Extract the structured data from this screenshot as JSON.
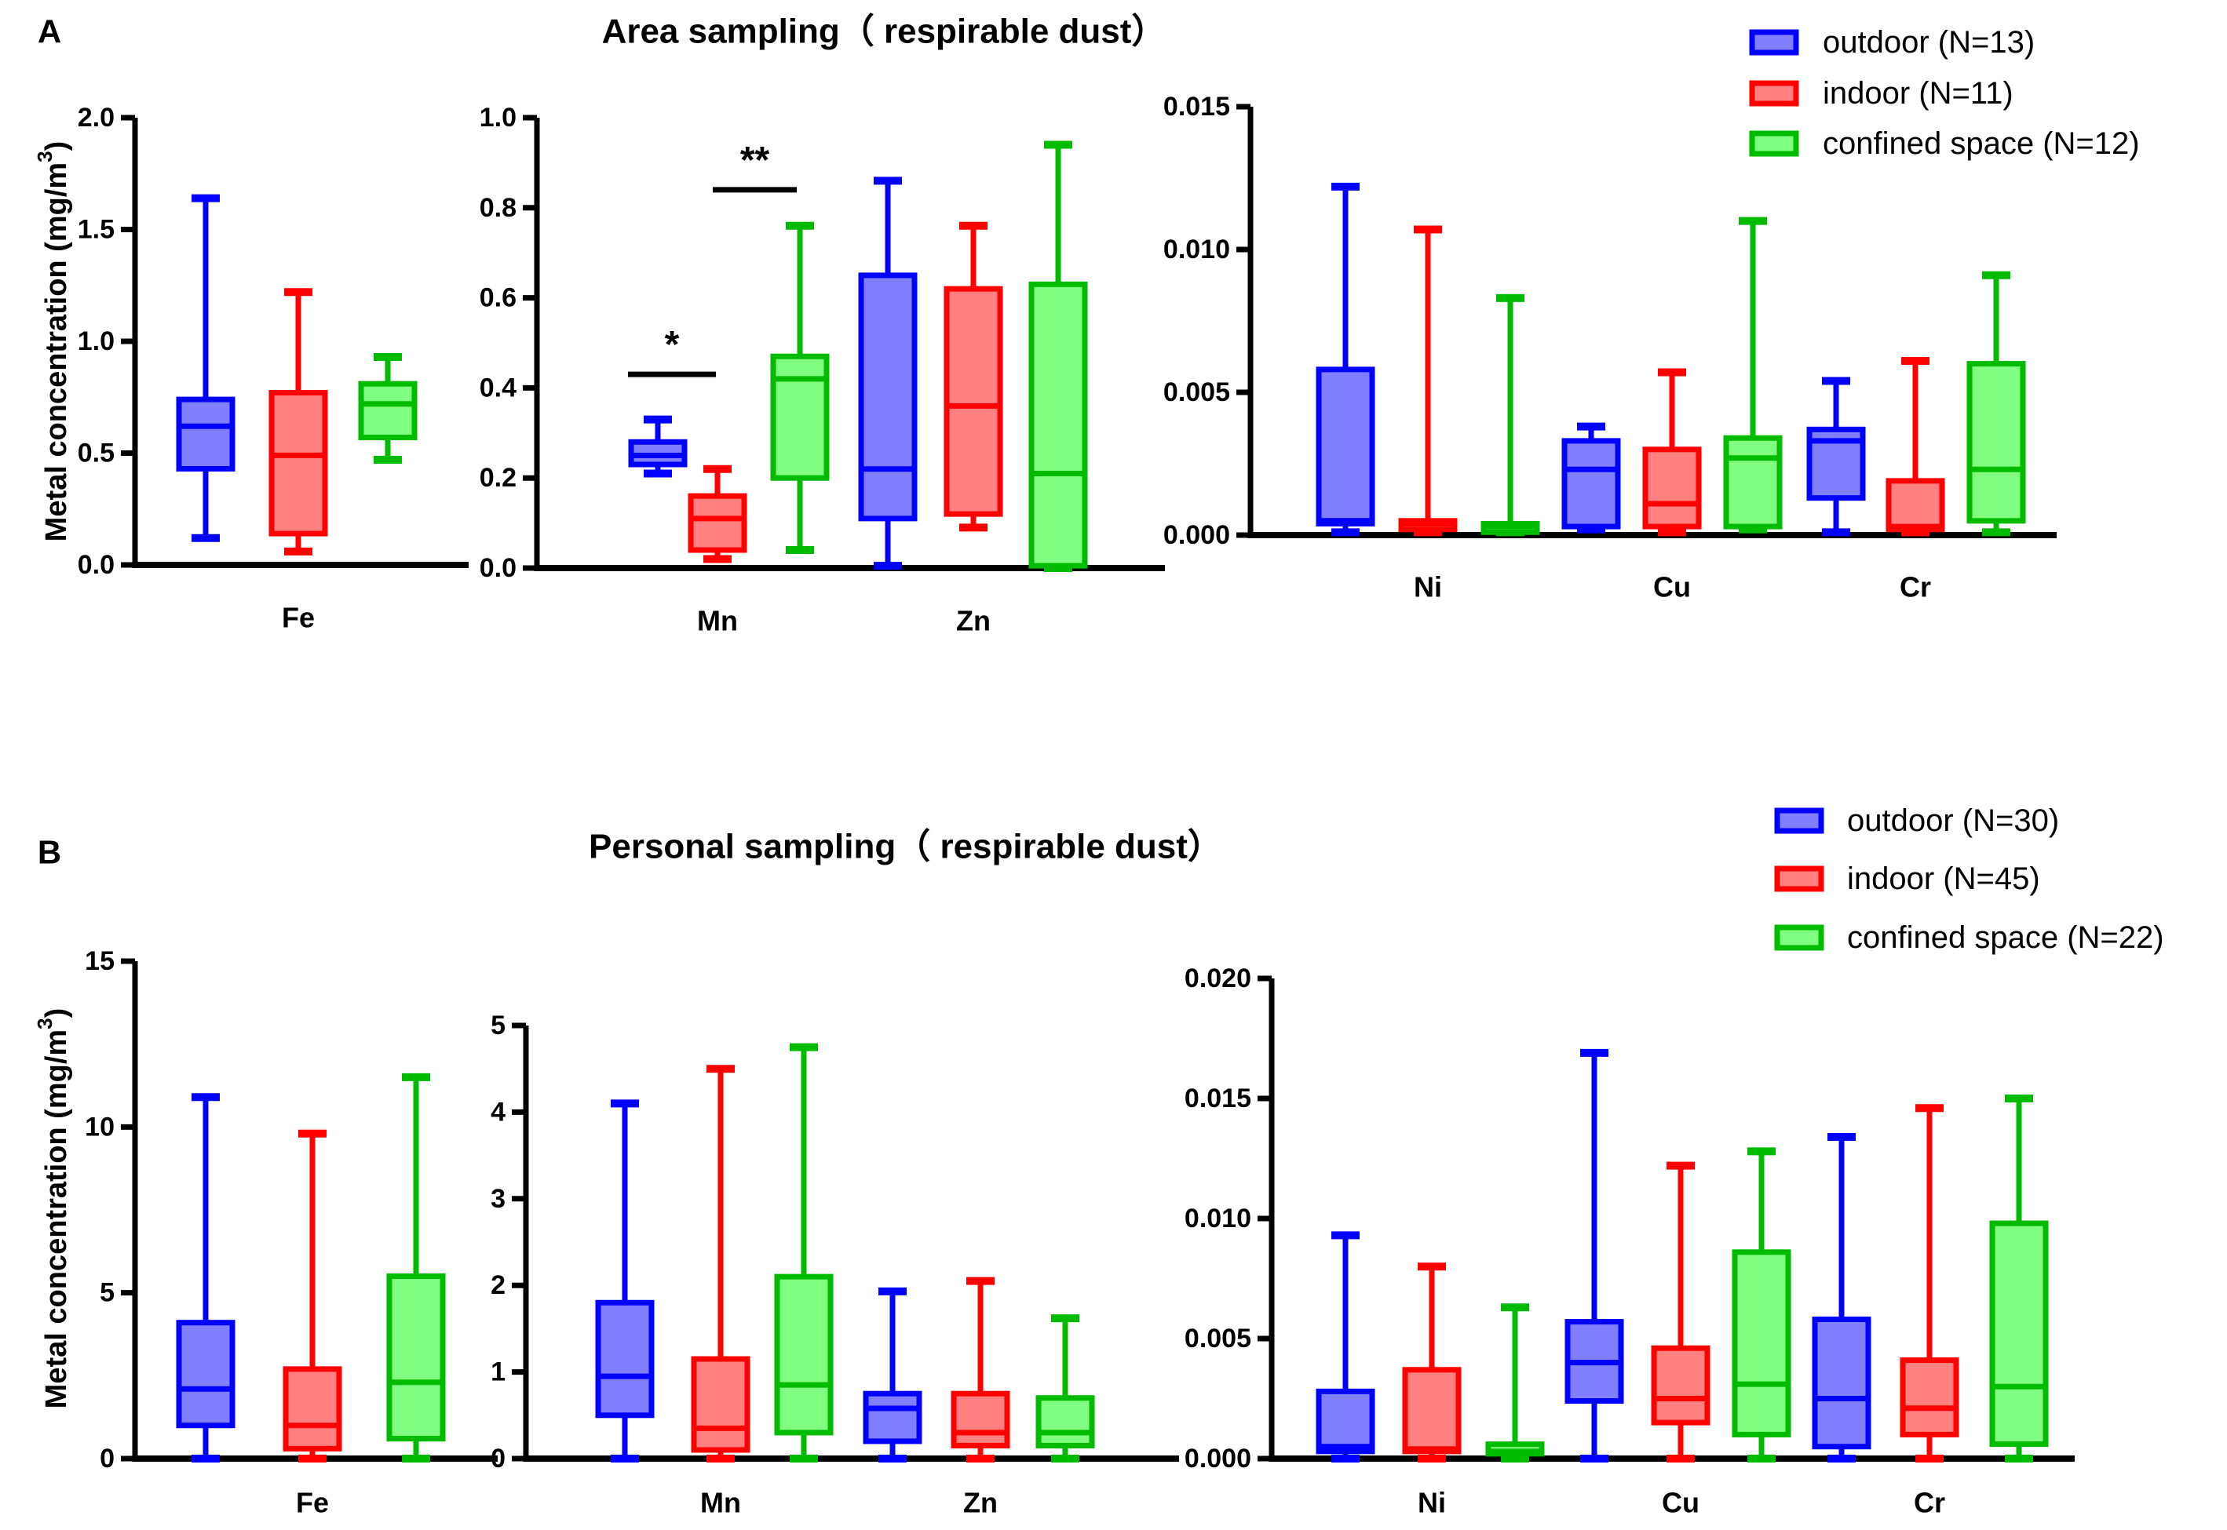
{
  "colors": {
    "outdoor": "#0000ff",
    "outdoor_fill": "#8080ff",
    "indoor": "#ff0000",
    "indoor_fill": "#ff8080",
    "confined": "#00bb00",
    "confined_fill": "#80ff80"
  },
  "chart_data": [
    {
      "section": "A",
      "title": "Area sampling（ respirable dust）",
      "type": "box",
      "ylabel": "Metal concentration (mg/m³)",
      "ylabel_main": "Metal concentration (mg/m",
      "ylabel_sup": "3",
      "ylabel_end": ")",
      "legend": [
        "outdoor (N=13)",
        "indoor (N=11)",
        "confined space (N=12)"
      ],
      "panels": [
        {
          "ylim": [
            0,
            2.0
          ],
          "ticks": [
            "0.0",
            "0.5",
            "1.0",
            "1.5",
            "2.0"
          ],
          "categories": [
            "Fe"
          ],
          "boxes": [
            [
              [
                0.12,
                0.43,
                0.62,
                0.74,
                1.64
              ],
              [
                0.06,
                0.14,
                0.49,
                0.77,
                1.22
              ],
              [
                0.47,
                0.57,
                0.72,
                0.81,
                0.93
              ]
            ]
          ]
        },
        {
          "ylim": [
            0,
            1.0
          ],
          "ticks": [
            "0.0",
            "0.2",
            "0.4",
            "0.6",
            "0.8",
            "1.0"
          ],
          "categories": [
            "Mn",
            "Zn"
          ],
          "boxes": [
            [
              [
                0.21,
                0.23,
                0.25,
                0.28,
                0.33
              ],
              [
                0.02,
                0.04,
                0.11,
                0.16,
                0.22
              ],
              [
                0.04,
                0.2,
                0.42,
                0.47,
                0.76
              ]
            ],
            [
              [
                0.005,
                0.11,
                0.22,
                0.65,
                0.86
              ],
              [
                0.09,
                0.12,
                0.36,
                0.62,
                0.76
              ],
              [
                0.0,
                0.005,
                0.21,
                0.63,
                0.94
              ]
            ]
          ],
          "annotations": [
            {
              "text": "*",
              "y": 0.43,
              "between": [
                "Mn outdoor",
                "Mn indoor"
              ]
            },
            {
              "text": "**",
              "y": 0.84,
              "between": [
                "Mn indoor",
                "Mn confined space"
              ]
            }
          ]
        },
        {
          "ylim": [
            0,
            0.015
          ],
          "ticks": [
            "0.000",
            "0.005",
            "0.010",
            "0.015"
          ],
          "categories": [
            "Ni",
            "Cu",
            "Cr"
          ],
          "boxes": [
            [
              [
                0.0001,
                0.0004,
                0.0005,
                0.0058,
                0.0122
              ],
              [
                0.0001,
                0.0002,
                0.0004,
                0.0005,
                0.0107
              ],
              [
                0.0001,
                0.0001,
                0.0003,
                0.0004,
                0.0083
              ]
            ],
            [
              [
                0.0002,
                0.0003,
                0.0023,
                0.0033,
                0.0038
              ],
              [
                0.0001,
                0.0003,
                0.0011,
                0.003,
                0.0057
              ],
              [
                0.0002,
                0.0003,
                0.0027,
                0.0034,
                0.011
              ]
            ],
            [
              [
                0.0001,
                0.0013,
                0.0033,
                0.0037,
                0.0054
              ],
              [
                0.0001,
                0.0002,
                0.0003,
                0.0019,
                0.0061
              ],
              [
                0.0001,
                0.0005,
                0.0023,
                0.006,
                0.0091
              ]
            ]
          ]
        }
      ]
    },
    {
      "section": "B",
      "title": "Personal sampling（ respirable dust）",
      "type": "box",
      "ylabel": "Metal concentration (mg/m³)",
      "ylabel_main": "Metal concentration (mg/m",
      "ylabel_sup": "3",
      "ylabel_end": ")",
      "legend": [
        "outdoor (N=30)",
        "indoor (N=45)",
        "confined space (N=22)"
      ],
      "panels": [
        {
          "ylim": [
            0,
            15
          ],
          "ticks": [
            "0",
            "5",
            "10",
            "15"
          ],
          "categories": [
            "Fe"
          ],
          "boxes": [
            [
              [
                0,
                1.0,
                2.1,
                4.1,
                10.9
              ],
              [
                0,
                0.3,
                1.0,
                2.7,
                9.8
              ],
              [
                0,
                0.6,
                2.3,
                5.5,
                11.5
              ]
            ]
          ]
        },
        {
          "ylim": [
            0,
            5
          ],
          "ticks": [
            "0",
            "1",
            "2",
            "3",
            "4",
            "5"
          ],
          "categories": [
            "Mn",
            "Zn"
          ],
          "boxes": [
            [
              [
                0,
                0.5,
                0.95,
                1.8,
                4.1
              ],
              [
                0,
                0.1,
                0.35,
                1.15,
                4.5
              ],
              [
                0,
                0.3,
                0.85,
                2.1,
                4.75
              ]
            ],
            [
              [
                0,
                0.2,
                0.58,
                0.75,
                1.93
              ],
              [
                0,
                0.15,
                0.3,
                0.75,
                2.05
              ],
              [
                0,
                0.15,
                0.3,
                0.7,
                1.62
              ]
            ]
          ]
        },
        {
          "ylim": [
            0,
            0.02
          ],
          "ticks": [
            "0.000",
            "0.005",
            "0.010",
            "0.015",
            "0.020"
          ],
          "categories": [
            "Ni",
            "Cu",
            "Cr"
          ],
          "boxes": [
            [
              [
                0,
                0.0003,
                0.0005,
                0.0028,
                0.0093
              ],
              [
                0,
                0.0003,
                0.0004,
                0.0037,
                0.008
              ],
              [
                0,
                0.0002,
                0.0003,
                0.0006,
                0.0063
              ]
            ],
            [
              [
                0,
                0.0024,
                0.004,
                0.0057,
                0.0169
              ],
              [
                0,
                0.0015,
                0.0025,
                0.0046,
                0.0122
              ],
              [
                0,
                0.001,
                0.0031,
                0.0086,
                0.0128
              ]
            ],
            [
              [
                0,
                0.0005,
                0.0025,
                0.0058,
                0.0134
              ],
              [
                0,
                0.001,
                0.0021,
                0.0041,
                0.0146
              ],
              [
                0,
                0.0006,
                0.003,
                0.0098,
                0.015
              ]
            ]
          ]
        }
      ]
    }
  ]
}
